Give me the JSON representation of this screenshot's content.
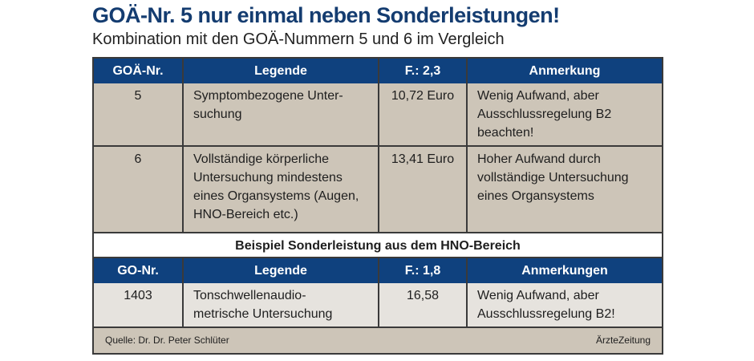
{
  "title": "GOÄ-Nr. 5 nur einmal neben Sonderleistungen!",
  "subtitle": "Kombination mit den GOÄ-Nummern 5 und 6 im Vergleich",
  "table1": {
    "headers": [
      "GOÄ-Nr.",
      "Legende",
      "F.: 2,3",
      "Anmerkung"
    ],
    "rows": [
      [
        "5",
        "Symptombezogene Unter-suchung",
        "10,72 Euro",
        "Wenig Aufwand, aber Ausschlussregelung B2 beachten!"
      ],
      [
        "6",
        "Vollständige körperliche Untersuchung mindestens eines Organsystems (Augen, HNO-Bereich etc.)",
        "13,41 Euro",
        "Hoher Aufwand durch vollständige Untersuchung eines Organsystems"
      ]
    ]
  },
  "section_title": "Beispiel Sonderleistung aus dem HNO-Bereich",
  "table2": {
    "headers": [
      "GO-Nr.",
      "Legende",
      "F.: 1,8",
      "Anmerkungen"
    ],
    "rows": [
      [
        "1403",
        "Tonschwellenaudio-metrische Untersuchung",
        "16,58",
        "Wenig Aufwand, aber Ausschlussregelung B2!"
      ]
    ]
  },
  "footer": {
    "source": "Quelle: Dr. Dr. Peter Schlüter",
    "brand": "ÄrzteZeitung"
  },
  "colors": {
    "header": "#0f417e",
    "title": "#143c70",
    "row": "#cdc5b8",
    "row_light": "#e6e3de"
  }
}
